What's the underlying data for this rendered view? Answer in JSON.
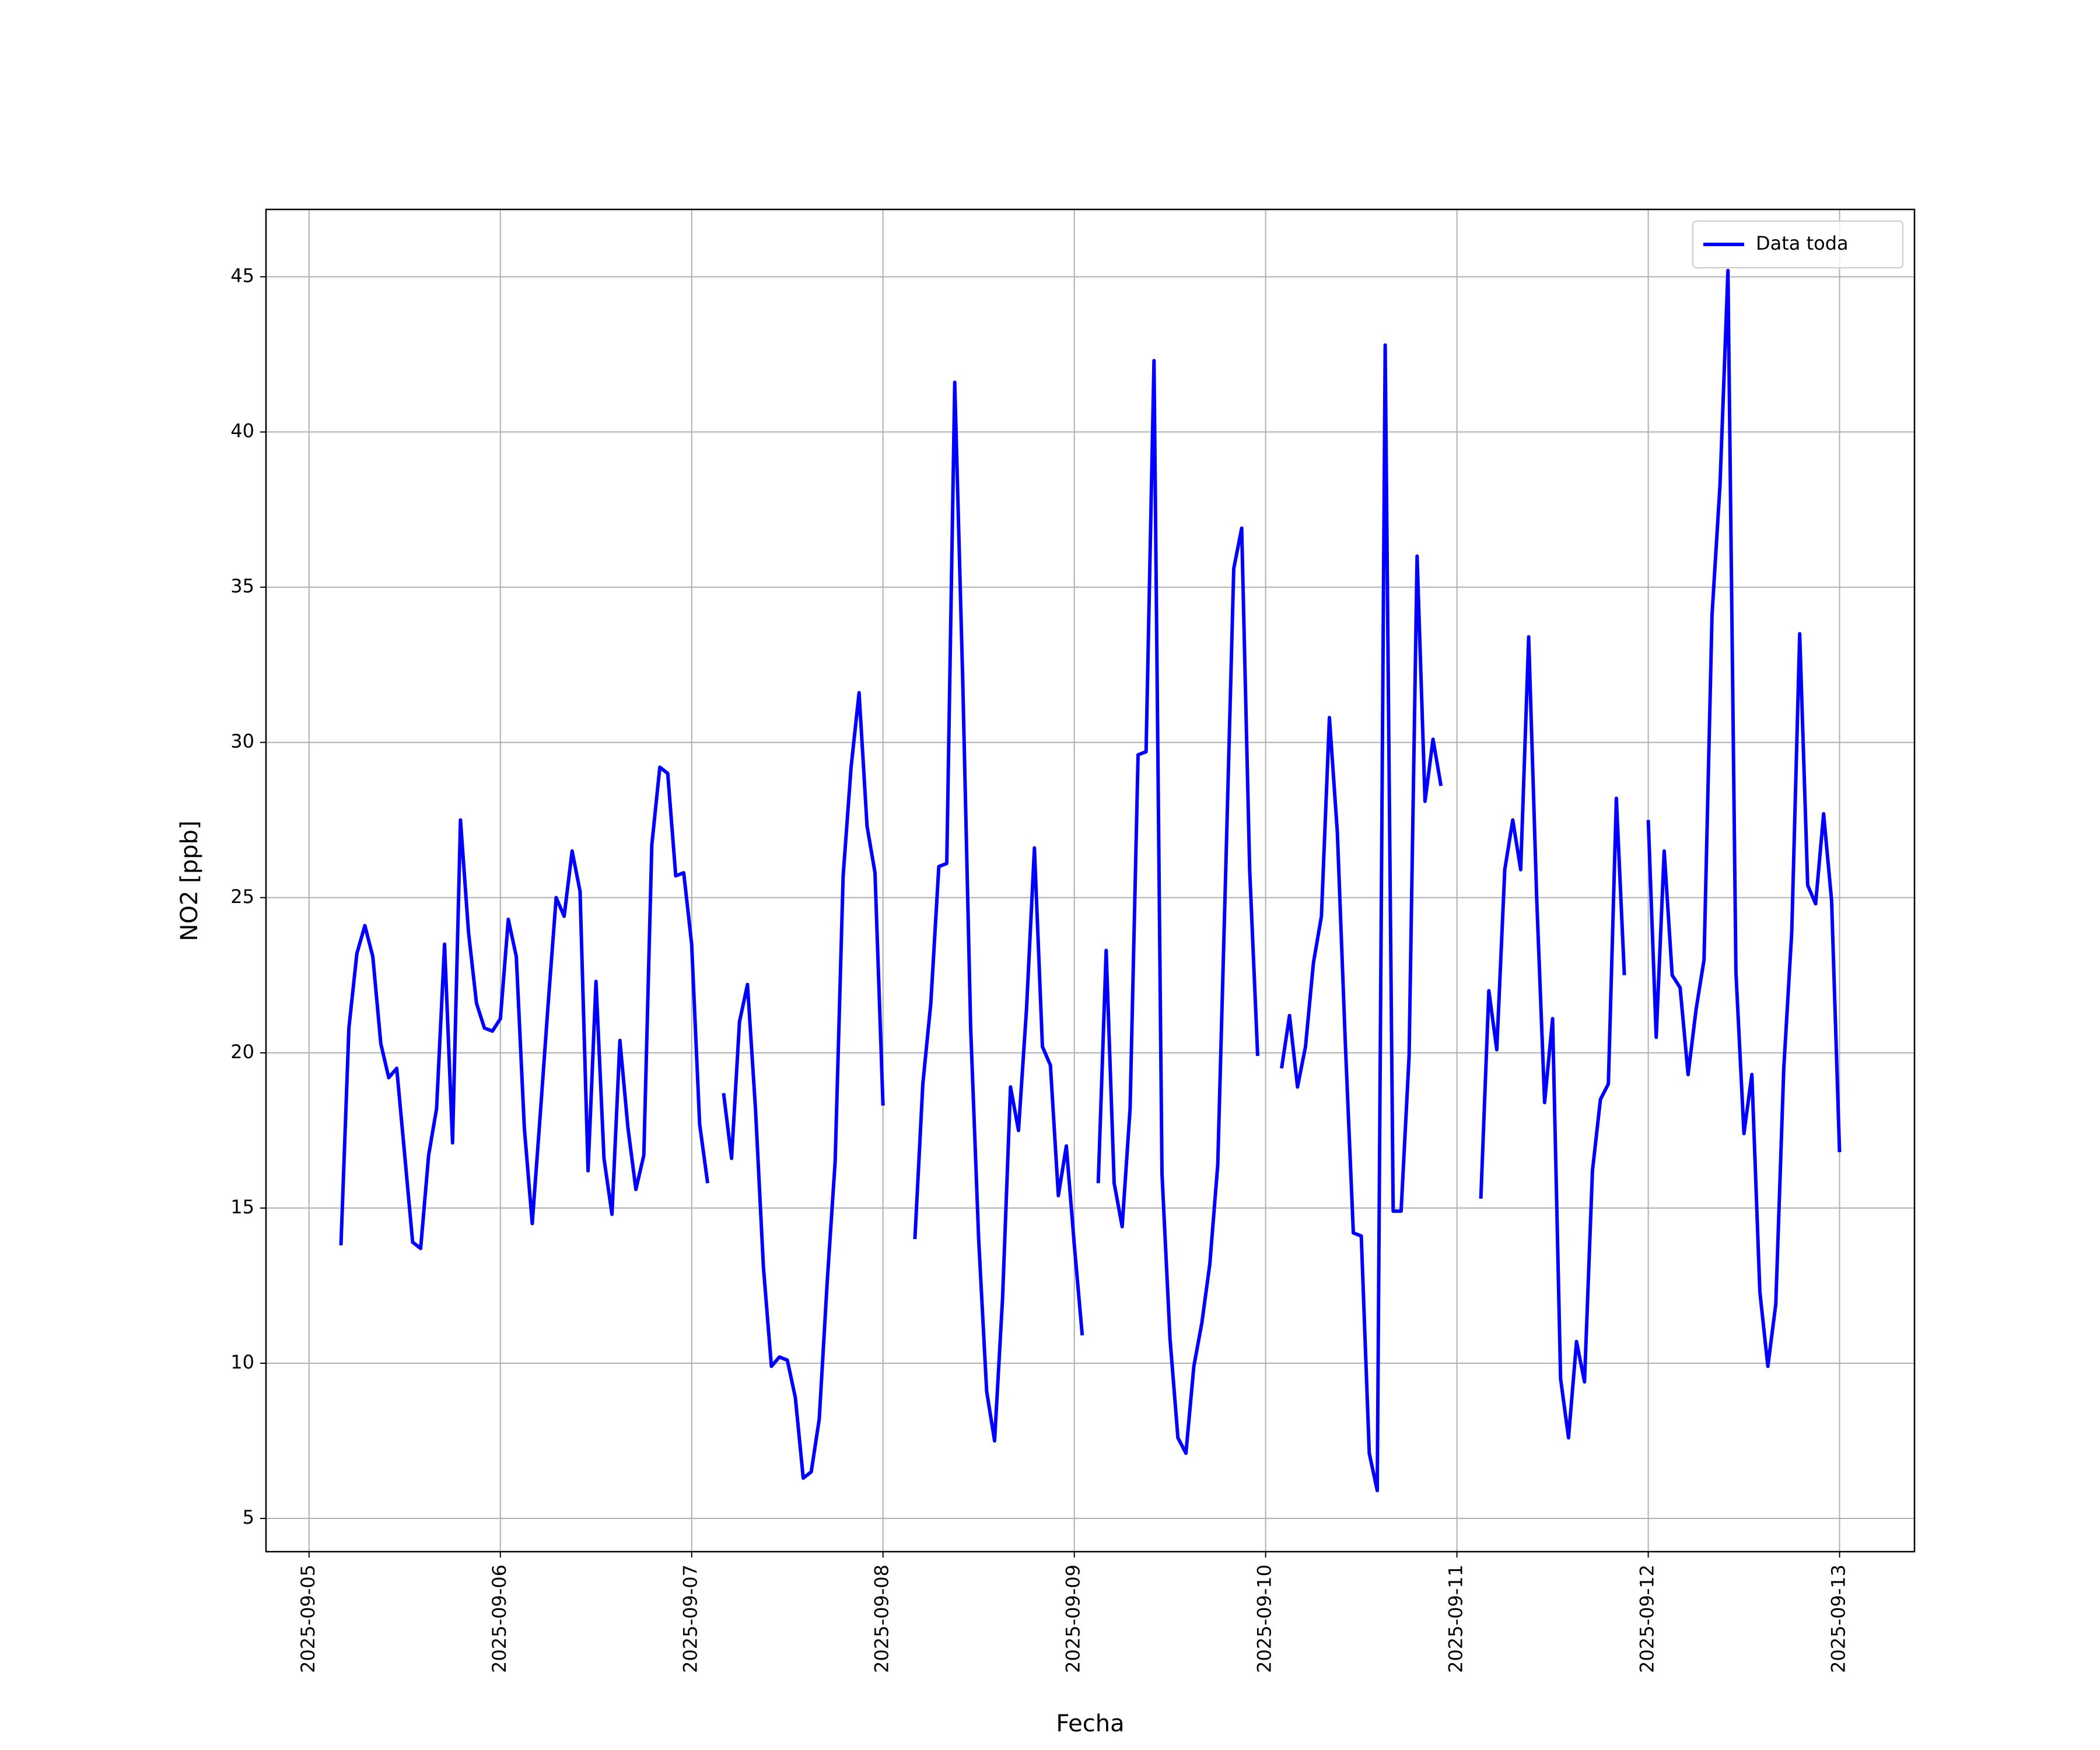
{
  "chart_data": {
    "type": "line",
    "xlabel": "Fecha",
    "ylabel": "NO2 [ppb]",
    "x": [
      "2025-09-05 04:00",
      "2025-09-05 05:00",
      "2025-09-05 06:00",
      "2025-09-05 07:00",
      "2025-09-05 08:00",
      "2025-09-05 09:00",
      "2025-09-05 10:00",
      "2025-09-05 11:00",
      "2025-09-05 12:00",
      "2025-09-05 13:00",
      "2025-09-05 14:00",
      "2025-09-05 15:00",
      "2025-09-05 16:00",
      "2025-09-05 17:00",
      "2025-09-05 18:00",
      "2025-09-05 19:00",
      "2025-09-05 20:00",
      "2025-09-05 21:00",
      "2025-09-05 22:00",
      "2025-09-05 23:00",
      "2025-09-06 00:00",
      "2025-09-06 01:00",
      "2025-09-06 02:00",
      "2025-09-06 03:00",
      "2025-09-06 04:00",
      "2025-09-06 05:00",
      "2025-09-06 06:00",
      "2025-09-06 07:00",
      "2025-09-06 08:00",
      "2025-09-06 09:00",
      "2025-09-06 10:00",
      "2025-09-06 11:00",
      "2025-09-06 12:00",
      "2025-09-06 13:00",
      "2025-09-06 14:00",
      "2025-09-06 15:00",
      "2025-09-06 16:00",
      "2025-09-06 17:00",
      "2025-09-06 18:00",
      "2025-09-06 19:00",
      "2025-09-06 20:00",
      "2025-09-06 21:00",
      "2025-09-06 22:00",
      "2025-09-06 23:00",
      "2025-09-07 00:00",
      "2025-09-07 01:00",
      "2025-09-07 02:00",
      "2025-09-07 03:00",
      "2025-09-07 04:00",
      "2025-09-07 05:00",
      "2025-09-07 06:00",
      "2025-09-07 07:00",
      "2025-09-07 08:00",
      "2025-09-07 09:00",
      "2025-09-07 10:00",
      "2025-09-07 11:00",
      "2025-09-07 12:00",
      "2025-09-07 13:00",
      "2025-09-07 14:00",
      "2025-09-07 15:00",
      "2025-09-07 16:00",
      "2025-09-07 17:00",
      "2025-09-07 18:00",
      "2025-09-07 19:00",
      "2025-09-07 20:00",
      "2025-09-07 21:00",
      "2025-09-07 22:00",
      "2025-09-07 23:00",
      "2025-09-08 00:00",
      "2025-09-08 01:00",
      "2025-09-08 02:00",
      "2025-09-08 03:00",
      "2025-09-08 04:00",
      "2025-09-08 05:00",
      "2025-09-08 06:00",
      "2025-09-08 07:00",
      "2025-09-08 08:00",
      "2025-09-08 09:00",
      "2025-09-08 10:00",
      "2025-09-08 11:00",
      "2025-09-08 12:00",
      "2025-09-08 13:00",
      "2025-09-08 14:00",
      "2025-09-08 15:00",
      "2025-09-08 16:00",
      "2025-09-08 17:00",
      "2025-09-08 18:00",
      "2025-09-08 19:00",
      "2025-09-08 20:00",
      "2025-09-08 21:00",
      "2025-09-08 22:00",
      "2025-09-08 23:00",
      "2025-09-09 00:00",
      "2025-09-09 01:00",
      "2025-09-09 02:00",
      "2025-09-09 03:00",
      "2025-09-09 04:00",
      "2025-09-09 05:00",
      "2025-09-09 06:00",
      "2025-09-09 07:00",
      "2025-09-09 08:00",
      "2025-09-09 09:00",
      "2025-09-09 10:00",
      "2025-09-09 11:00",
      "2025-09-09 12:00",
      "2025-09-09 13:00",
      "2025-09-09 14:00",
      "2025-09-09 15:00",
      "2025-09-09 16:00",
      "2025-09-09 17:00",
      "2025-09-09 18:00",
      "2025-09-09 19:00",
      "2025-09-09 20:00",
      "2025-09-09 21:00",
      "2025-09-09 22:00",
      "2025-09-09 23:00",
      "2025-09-10 00:00",
      "2025-09-10 01:00",
      "2025-09-10 02:00",
      "2025-09-10 03:00",
      "2025-09-10 04:00",
      "2025-09-10 05:00",
      "2025-09-10 06:00",
      "2025-09-10 07:00",
      "2025-09-10 08:00",
      "2025-09-10 09:00",
      "2025-09-10 10:00",
      "2025-09-10 11:00",
      "2025-09-10 12:00",
      "2025-09-10 13:00",
      "2025-09-10 14:00",
      "2025-09-10 15:00",
      "2025-09-10 16:00",
      "2025-09-10 17:00",
      "2025-09-10 18:00",
      "2025-09-10 19:00",
      "2025-09-10 20:00",
      "2025-09-10 21:00",
      "2025-09-10 22:00",
      "2025-09-10 23:00",
      "2025-09-11 00:00",
      "2025-09-11 01:00",
      "2025-09-11 02:00",
      "2025-09-11 03:00",
      "2025-09-11 04:00",
      "2025-09-11 05:00",
      "2025-09-11 06:00",
      "2025-09-11 07:00",
      "2025-09-11 08:00",
      "2025-09-11 09:00",
      "2025-09-11 10:00",
      "2025-09-11 11:00",
      "2025-09-11 12:00",
      "2025-09-11 13:00",
      "2025-09-11 14:00",
      "2025-09-11 15:00",
      "2025-09-11 16:00",
      "2025-09-11 17:00",
      "2025-09-11 18:00",
      "2025-09-11 19:00",
      "2025-09-11 20:00",
      "2025-09-11 21:00",
      "2025-09-11 22:00",
      "2025-09-11 23:00",
      "2025-09-12 00:00",
      "2025-09-12 01:00",
      "2025-09-12 02:00",
      "2025-09-12 03:00",
      "2025-09-12 04:00",
      "2025-09-12 05:00",
      "2025-09-12 06:00",
      "2025-09-12 07:00",
      "2025-09-12 08:00",
      "2025-09-12 09:00",
      "2025-09-12 10:00",
      "2025-09-12 11:00",
      "2025-09-12 12:00",
      "2025-09-12 13:00",
      "2025-09-12 14:00",
      "2025-09-12 15:00",
      "2025-09-12 16:00",
      "2025-09-12 17:00",
      "2025-09-12 18:00",
      "2025-09-12 19:00",
      "2025-09-12 20:00",
      "2025-09-12 21:00",
      "2025-09-12 22:00",
      "2025-09-12 23:00",
      "2025-09-13 00:00"
    ],
    "series": [
      {
        "name": "Data toda",
        "color": "#0000ff",
        "values": [
          13.8,
          20.8,
          23.2,
          24.1,
          23.1,
          20.3,
          19.2,
          19.5,
          16.7,
          13.9,
          13.7,
          16.7,
          18.2,
          23.5,
          17.1,
          27.5,
          23.9,
          21.6,
          20.8,
          20.7,
          21.1,
          24.3,
          23.1,
          17.6,
          14.5,
          18.0,
          21.6,
          25.0,
          24.4,
          26.5,
          25.2,
          16.2,
          22.3,
          16.6,
          14.8,
          20.4,
          17.6,
          15.6,
          16.7,
          26.7,
          29.2,
          29.0,
          25.7,
          25.8,
          23.5,
          17.7,
          15.8,
          null,
          18.7,
          16.6,
          21.0,
          22.2,
          18.2,
          13.1,
          9.9,
          10.2,
          10.1,
          8.9,
          6.3,
          6.5,
          8.2,
          12.6,
          16.5,
          25.7,
          29.2,
          31.6,
          27.3,
          25.8,
          18.3,
          null,
          null,
          null,
          14.0,
          19.0,
          21.6,
          26.0,
          26.1,
          41.6,
          32.0,
          20.8,
          14.0,
          9.1,
          7.5,
          12.1,
          18.9,
          17.5,
          21.4,
          26.6,
          20.2,
          19.6,
          15.4,
          17.0,
          13.8,
          10.9,
          null,
          15.8,
          23.3,
          15.8,
          14.4,
          18.2,
          29.6,
          29.7,
          42.3,
          16.1,
          10.8,
          7.6,
          7.1,
          9.9,
          11.3,
          13.2,
          16.4,
          25.9,
          35.6,
          36.9,
          25.9,
          19.9,
          null,
          null,
          19.5,
          21.2,
          18.9,
          20.2,
          22.9,
          24.4,
          30.8,
          27.1,
          20.3,
          14.2,
          14.1,
          7.1,
          5.9,
          42.8,
          14.9,
          14.9,
          19.9,
          36.0,
          28.1,
          30.1,
          28.6,
          null,
          null,
          null,
          null,
          15.3,
          22.0,
          20.1,
          25.9,
          27.5,
          25.9,
          33.4,
          25.0,
          18.4,
          21.1,
          9.5,
          7.6,
          10.7,
          9.4,
          16.2,
          18.5,
          19.0,
          28.2,
          22.5,
          null,
          null,
          27.5,
          20.5,
          26.5,
          22.5,
          22.1,
          19.3,
          21.4,
          23.0,
          34.1,
          38.3,
          45.2,
          22.6,
          17.4,
          19.3,
          12.3,
          9.9,
          11.9,
          19.5,
          23.9,
          33.5,
          25.4,
          24.8,
          27.7,
          24.9,
          16.8
        ]
      }
    ],
    "xlim": [
      "2025-09-04 18:36",
      "2025-09-13 09:24"
    ],
    "xticks": [
      "2025-09-05",
      "2025-09-06",
      "2025-09-07",
      "2025-09-08",
      "2025-09-09",
      "2025-09-10",
      "2025-09-11",
      "2025-09-12",
      "2025-09-13"
    ],
    "ylim": [
      3.93,
      47.17
    ],
    "yticks": [
      5,
      10,
      15,
      20,
      25,
      30,
      35,
      40,
      45
    ],
    "grid": true,
    "legend": "upper right"
  }
}
